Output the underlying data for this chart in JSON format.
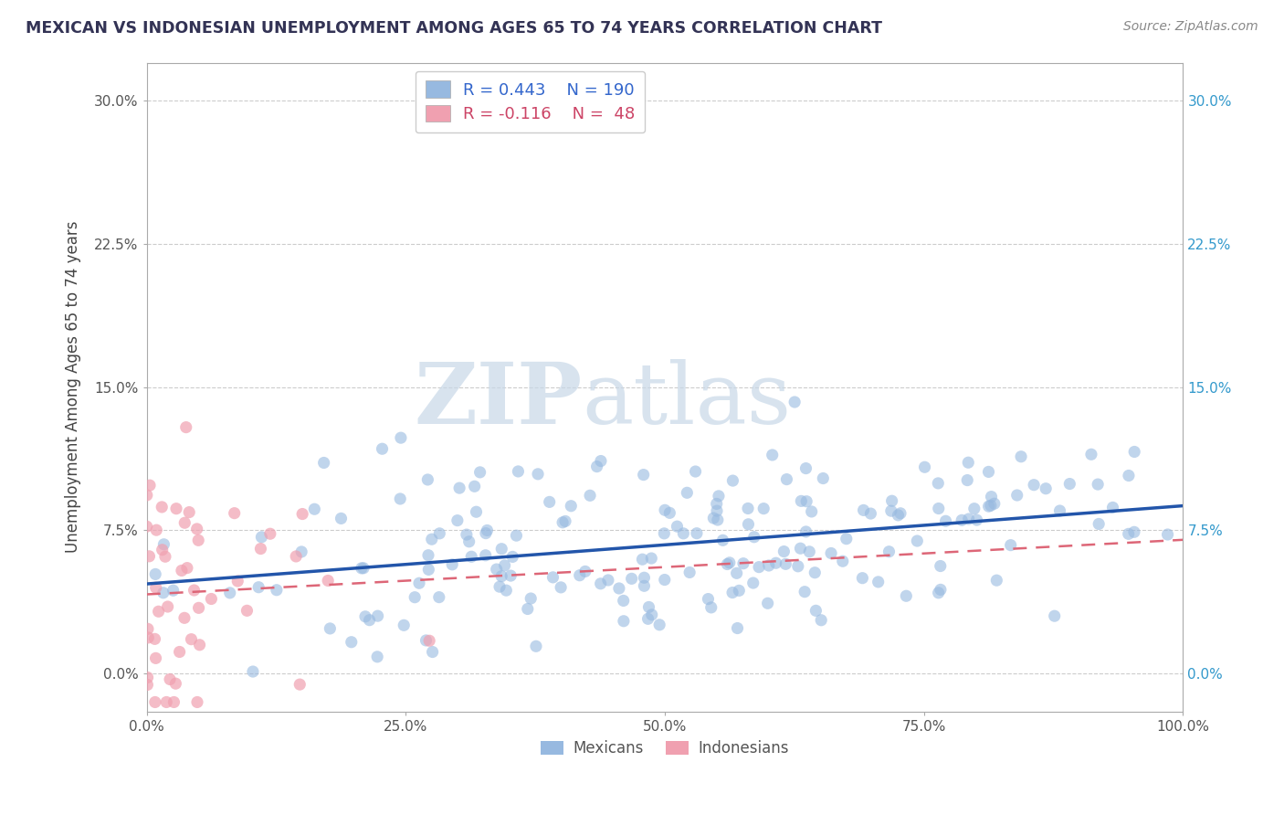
{
  "title": "MEXICAN VS INDONESIAN UNEMPLOYMENT AMONG AGES 65 TO 74 YEARS CORRELATION CHART",
  "source": "Source: ZipAtlas.com",
  "ylabel": "Unemployment Among Ages 65 to 74 years",
  "xlim": [
    0,
    1.0
  ],
  "ylim": [
    -0.02,
    0.32
  ],
  "xticks": [
    0.0,
    0.25,
    0.5,
    0.75,
    1.0
  ],
  "xtick_labels": [
    "0.0%",
    "25.0%",
    "50.0%",
    "75.0%",
    "100.0%"
  ],
  "yticks": [
    0.0,
    0.075,
    0.15,
    0.225,
    0.3
  ],
  "ytick_labels": [
    "0.0%",
    "7.5%",
    "15.0%",
    "22.5%",
    "30.0%"
  ],
  "watermark_zip": "ZIP",
  "watermark_atlas": "atlas",
  "legend_R_mexican": "R = 0.443",
  "legend_N_mexican": "N = 190",
  "legend_R_indonesian": "R = -0.116",
  "legend_N_indonesian": "N =  48",
  "mexican_color": "#97B9E0",
  "indonesian_color": "#F0A0B0",
  "trend_mexican_color": "#2255AA",
  "trend_indonesian_color": "#DD6677",
  "background_color": "#FFFFFF",
  "grid_color": "#CCCCCC",
  "title_color": "#333355",
  "source_color": "#888888",
  "legend_text_color": "#3366CC",
  "legend_ind_text_color": "#CC4466"
}
